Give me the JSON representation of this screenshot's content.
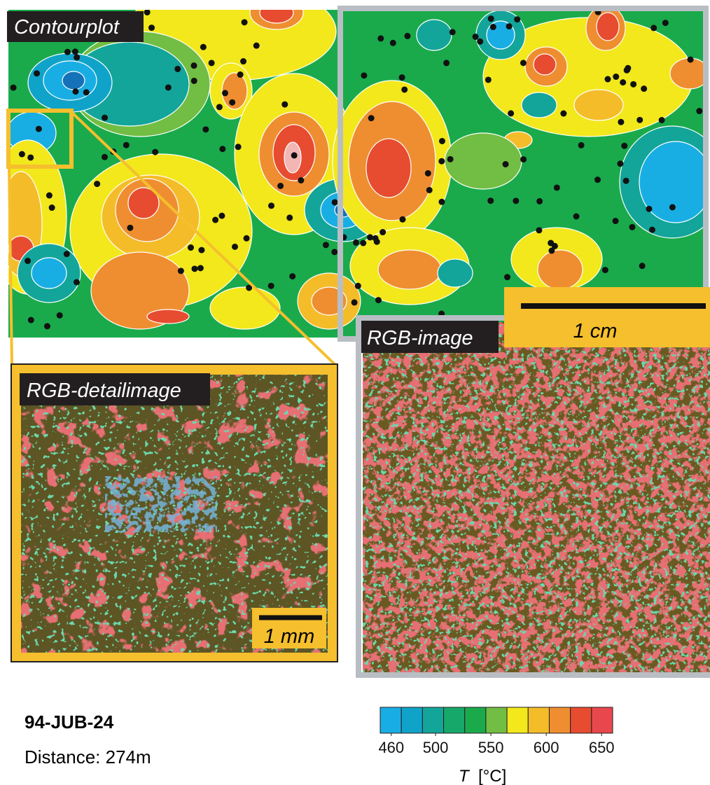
{
  "panels": {
    "contour": {
      "label": "Contourplot"
    },
    "detail": {
      "label": "RGB-detailimage",
      "scale_bar": "1 mm"
    },
    "rgb": {
      "label": "RGB-image",
      "scale_bar": "1 cm"
    }
  },
  "sample": {
    "id": "94-JUB-24",
    "distance": "Distance: 274m"
  },
  "colorbar": {
    "colors": [
      "#19aee3",
      "#10a3c9",
      "#13a59a",
      "#16a86a",
      "#1aaa4c",
      "#72bd43",
      "#f2e81c",
      "#f5bc2a",
      "#ef8e30",
      "#e74c30",
      "#e8474d"
    ],
    "lim": [
      450,
      660
    ],
    "ticks": [
      460,
      500,
      550,
      600,
      650
    ],
    "label_symbol": "T",
    "label_unit": "[°C]"
  }
}
